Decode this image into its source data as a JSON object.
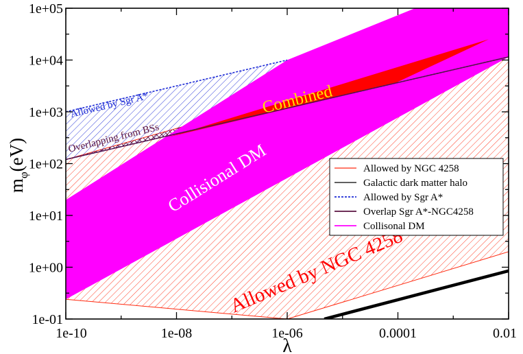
{
  "chart_data": {
    "type": "area",
    "title": "",
    "xlabel": "λ",
    "ylabel_main": "m",
    "ylabel_sub": "φ",
    "ylabel_unit": "(eV)",
    "xscale": "log",
    "yscale": "log",
    "xlim_log10": [
      -10,
      -2
    ],
    "ylim_log10": [
      -1,
      5
    ],
    "x_ticks": [
      {
        "log": -10,
        "label": "1e-10"
      },
      {
        "log": -8,
        "label": "1e-08"
      },
      {
        "log": -6,
        "label": "1e-06"
      },
      {
        "log": -4,
        "label": "0.0001"
      },
      {
        "log": -2,
        "label": "0.01"
      }
    ],
    "y_ticks": [
      {
        "log": -1,
        "label": "1e-01"
      },
      {
        "log": 0,
        "label": "1e+00"
      },
      {
        "log": 1,
        "label": "1e+01"
      },
      {
        "log": 2,
        "label": "1e+02"
      },
      {
        "log": 3,
        "label": "1e+03"
      },
      {
        "log": 4,
        "label": "1e+04"
      },
      {
        "log": 5,
        "label": "1e+05"
      }
    ],
    "series": [
      {
        "name": "Allowed by NGC 4258",
        "color": "#ff2a10",
        "style": "hatch",
        "polygon_log": [
          [
            -10,
            2.08
          ],
          [
            -2,
            4.48
          ],
          [
            -2,
            0.3
          ],
          [
            -6,
            -1.0
          ],
          [
            -10,
            -0.62
          ]
        ]
      },
      {
        "name": "Allowed by Sgr A*",
        "color": "#1d2bd6",
        "style": "hatch",
        "polygon_log": [
          [
            -10,
            3.0
          ],
          [
            -6,
            4.0
          ],
          [
            -2,
            5.02
          ],
          [
            -2,
            4.06
          ],
          [
            -10,
            2.08
          ]
        ]
      },
      {
        "name": "Overlap Sgr A*-NGC4258",
        "color": "#5a1240",
        "style": "crosshatch",
        "polygon_log": [
          [
            -10,
            2.08
          ],
          [
            -2,
            4.48
          ],
          [
            -2,
            4.06
          ],
          [
            -10,
            2.08
          ]
        ]
      },
      {
        "name": "Collisonal DM",
        "color": "#ff00ff",
        "style": "fill",
        "polygon_log": [
          [
            -10,
            1.3
          ],
          [
            -6,
            4.0
          ],
          [
            -3.69,
            5.0
          ],
          [
            -2,
            5.0
          ],
          [
            -2,
            4.06
          ],
          [
            -10,
            -0.62
          ]
        ]
      },
      {
        "name": "Combined",
        "color": "#ff0000",
        "style": "fill",
        "polygon_log": [
          [
            -8.0,
            2.56
          ],
          [
            -2.36,
            4.4
          ],
          [
            -4.06,
            3.55
          ],
          [
            -8.16,
            2.51
          ]
        ]
      },
      {
        "name": "Galactic dark matter halo",
        "color": "#000000",
        "style": "line",
        "points_log": [
          [
            -5.33,
            -1.0
          ],
          [
            -2,
            -0.07
          ]
        ]
      }
    ],
    "legend": {
      "position": "center-right",
      "entries": [
        {
          "label": "Allowed by NGC 4258",
          "color": "#ff2a10"
        },
        {
          "label": "Galactic dark matter halo",
          "color": "#000000"
        },
        {
          "label": "Allowed by Sgr A*",
          "color": "#1d2bd6"
        },
        {
          "label": "Overlap Sgr A*-NGC4258",
          "color": "#5a1240"
        },
        {
          "label": "Collisonal DM",
          "color": "#ff00ff"
        }
      ]
    },
    "annotations": {
      "allowed_sgr": "Allowed by Sgr A*",
      "overlapping": "Overlapping from BSs",
      "combined": "Combined",
      "collisional": "Collisional DM",
      "allowed_ngc": "Allowed by NGC 4258"
    }
  }
}
